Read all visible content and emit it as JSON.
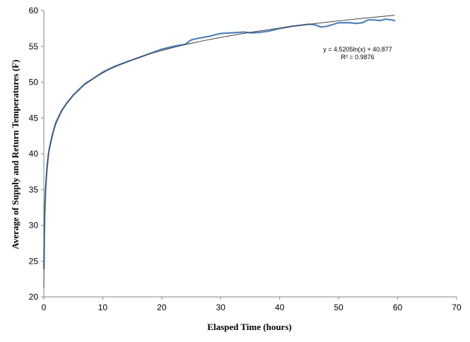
{
  "chart_data": {
    "type": "scatter",
    "xlabel": "Elasped Time (hours)",
    "ylabel": "Average of Supply and Return Temperatures (F)",
    "xlim": [
      0,
      70
    ],
    "ylim": [
      20,
      60
    ],
    "xticks": [
      "0",
      "10",
      "20",
      "30",
      "40",
      "50",
      "60",
      "70"
    ],
    "yticks": [
      "20",
      "25",
      "30",
      "35",
      "40",
      "45",
      "50",
      "55",
      "60"
    ],
    "grid": false,
    "series": [
      {
        "color": "#4f81bd",
        "x": [
          0.03,
          0.08,
          0.15,
          0.3,
          0.5,
          0.75,
          1,
          1.5,
          2,
          3,
          4,
          5,
          6,
          7,
          8,
          10,
          12,
          14,
          16,
          18,
          20,
          22,
          24,
          25,
          26,
          28,
          30,
          32,
          34,
          35,
          36,
          38,
          40,
          42,
          44,
          45,
          46,
          47,
          48,
          50,
          52,
          53,
          54,
          55,
          56,
          57,
          58,
          59,
          59.5
        ],
        "y": [
          24.0,
          28.5,
          31.5,
          35.0,
          37.5,
          39.8,
          41.0,
          42.8,
          44.3,
          46.0,
          47.2,
          48.2,
          49.0,
          49.8,
          50.3,
          51.4,
          52.2,
          52.8,
          53.4,
          54.0,
          54.6,
          55.0,
          55.3,
          55.9,
          56.1,
          56.4,
          56.8,
          56.9,
          57.0,
          56.9,
          56.9,
          57.1,
          57.5,
          57.8,
          58.0,
          58.1,
          58.0,
          57.7,
          57.8,
          58.3,
          58.3,
          58.2,
          58.3,
          58.7,
          58.7,
          58.6,
          58.8,
          58.7,
          58.6
        ]
      }
    ],
    "trendline": {
      "type": "logarithmic",
      "a": 4.5205,
      "b": 40.877,
      "x_range": [
        0.013,
        59.5
      ],
      "color": "#404040",
      "equation": "y = 4.5205ln(x) + 40.877",
      "r_squared": "R² = 0.9876"
    }
  }
}
